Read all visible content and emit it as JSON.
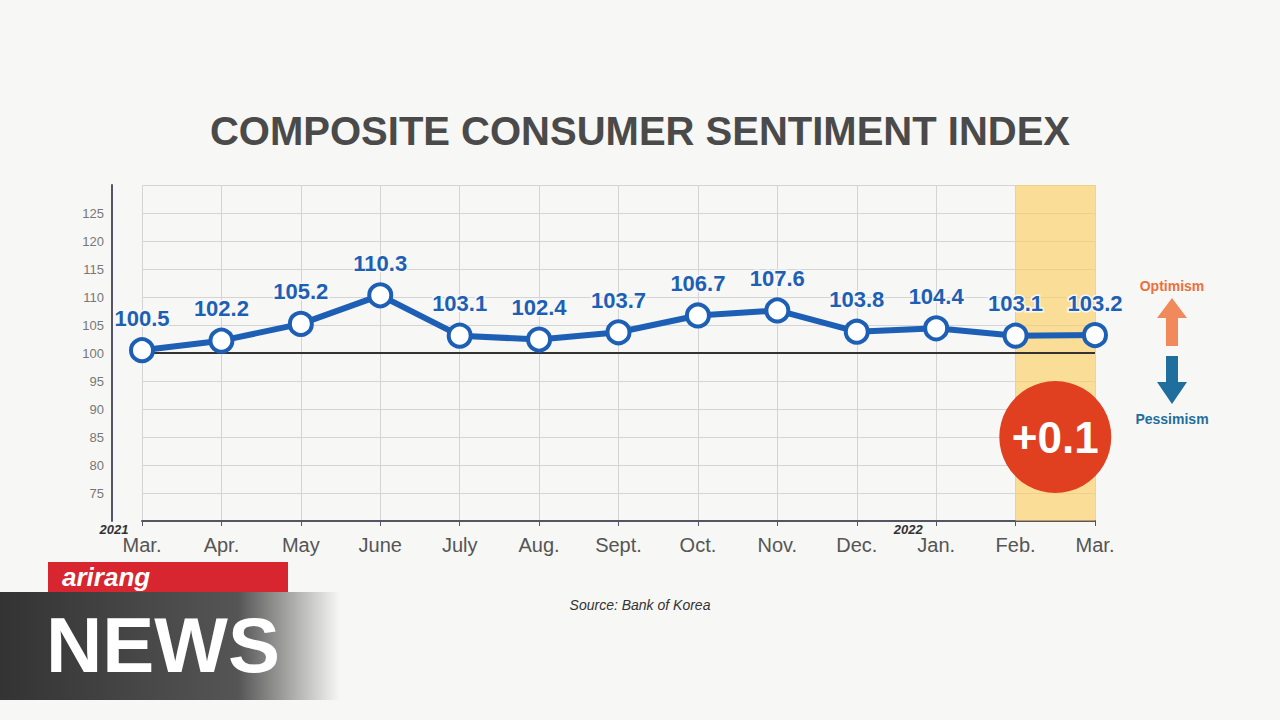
{
  "chart_data": {
    "type": "line",
    "title": "COMPOSITE CONSUMER SENTIMENT INDEX",
    "source": "Source: Bank of Korea",
    "categories": [
      "Mar.",
      "Apr.",
      "May",
      "June",
      "July",
      "Aug.",
      "Sept.",
      "Oct.",
      "Nov.",
      "Dec.",
      "Jan.",
      "Feb.",
      "Mar."
    ],
    "year_marks": [
      {
        "index": 0,
        "label": "2021"
      },
      {
        "index": 10,
        "label": "2022"
      }
    ],
    "values": [
      100.5,
      102.2,
      105.2,
      110.3,
      103.1,
      102.4,
      103.7,
      106.7,
      107.6,
      103.8,
      104.4,
      103.1,
      103.2
    ],
    "color": "#1d5fb5",
    "marker": "circle",
    "data_labels": true,
    "ylim": [
      70,
      130
    ],
    "yticks": [
      75,
      80,
      85,
      90,
      95,
      100,
      105,
      110,
      115,
      120,
      125
    ],
    "grid": true,
    "reference_line": 100,
    "highlight": {
      "from": 11,
      "to": 12,
      "label": "+0.1"
    },
    "direction_labels": {
      "up": "Optimism",
      "down": "Pessimism"
    },
    "branding": {
      "top": "arirang",
      "bottom": "NEWS"
    }
  }
}
